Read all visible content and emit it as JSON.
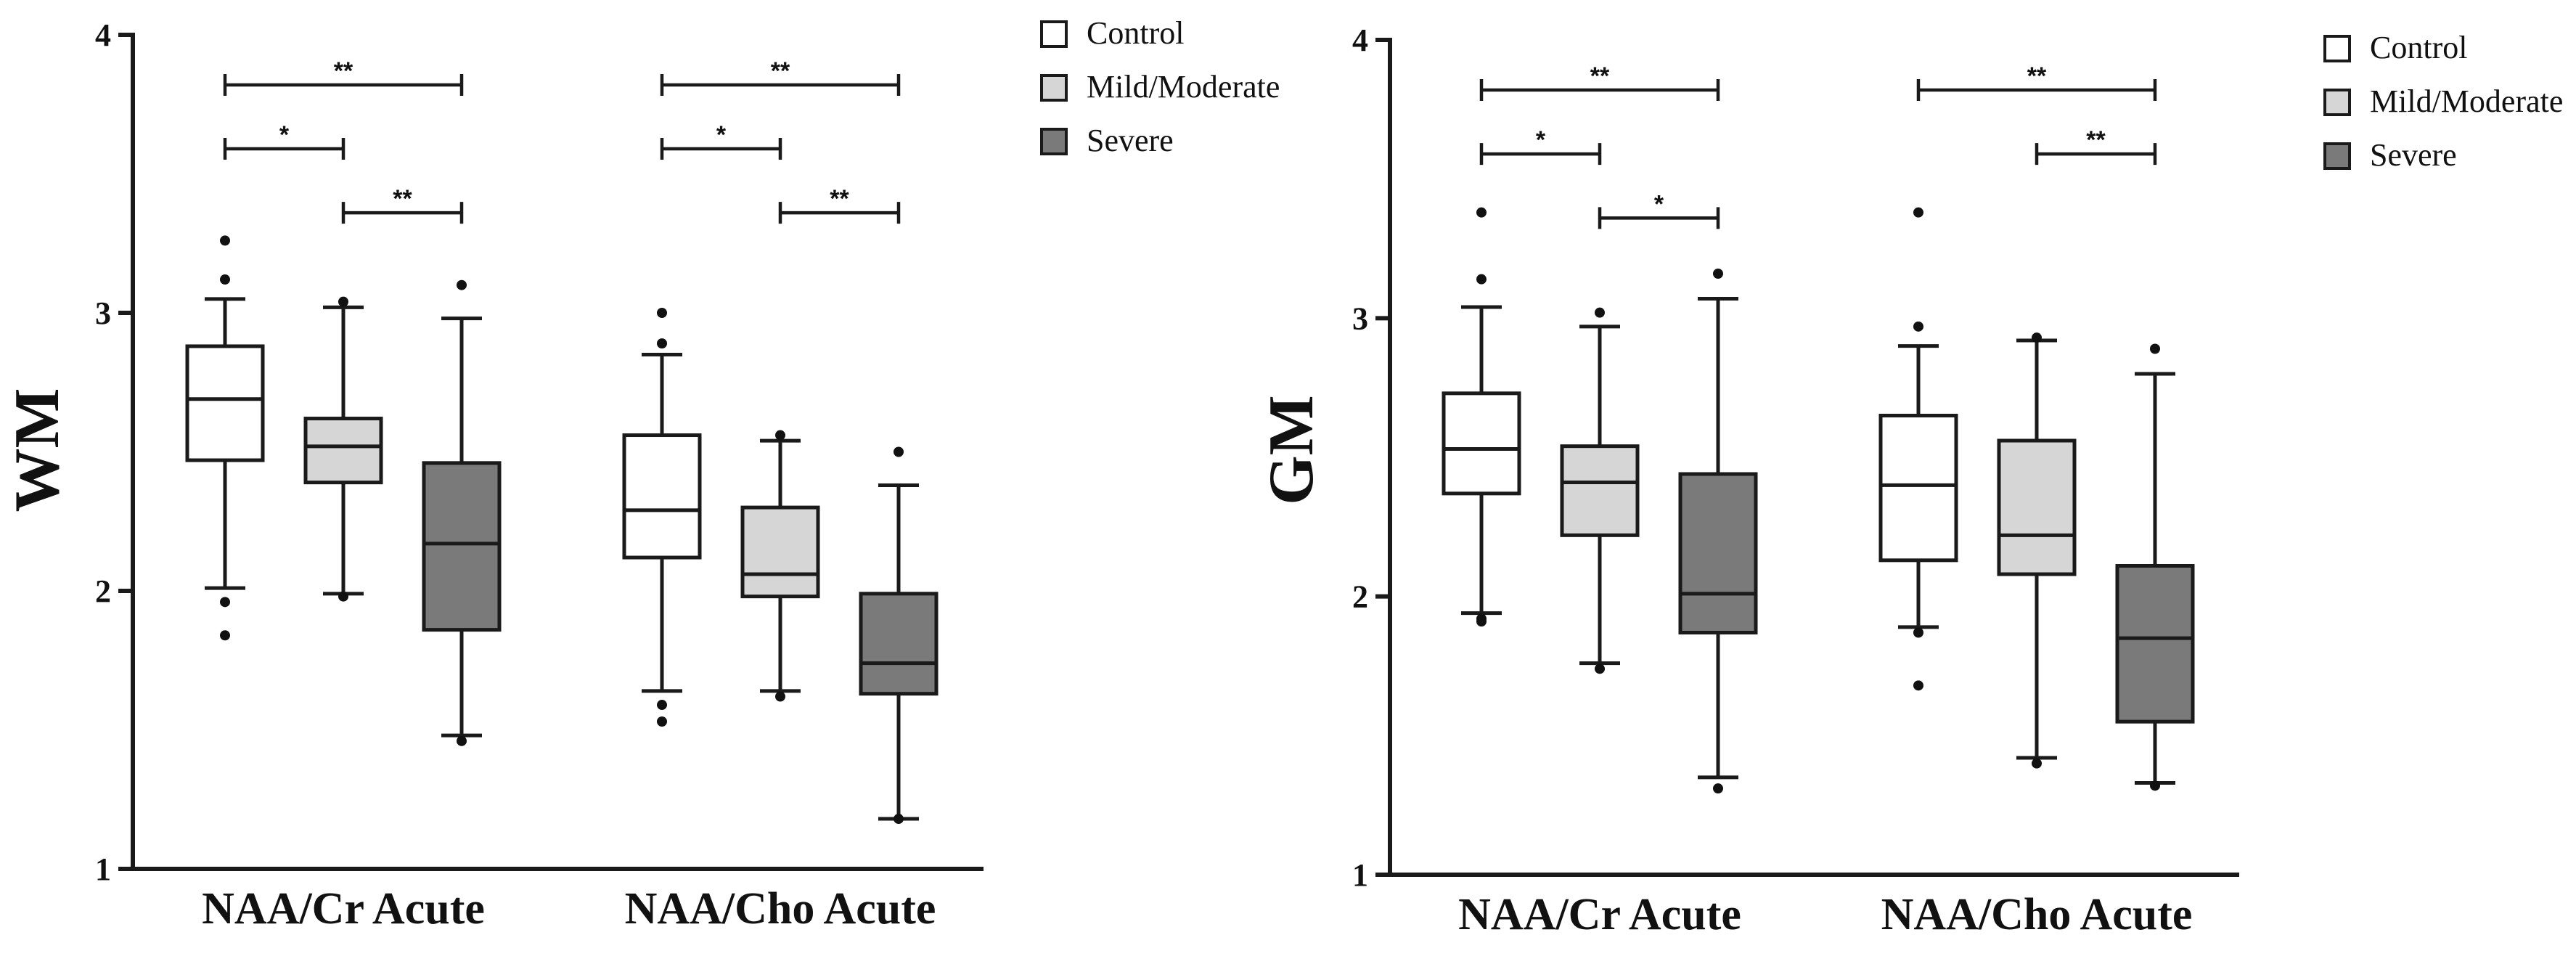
{
  "chart_data": [
    {
      "type": "box",
      "ylabel": "WM",
      "ylim": [
        1,
        4
      ],
      "yticks": [
        "1",
        "2",
        "3",
        "4"
      ],
      "categories": [
        "NAA/Cr Acute",
        "NAA/Cho Acute"
      ],
      "legend": [
        {
          "name": "Control",
          "color": "#ffffff"
        },
        {
          "name": "Mild/Moderate",
          "color": "#d6d6d6"
        },
        {
          "name": "Severe",
          "color": "#7a7a7a"
        }
      ],
      "series": [
        {
          "name": "Control",
          "boxes": [
            {
              "category": "NAA/Cr Acute",
              "whisker_low": 2.01,
              "q1": 2.47,
              "median": 2.69,
              "q3": 2.88,
              "whisker_high": 3.05,
              "outliers": [
                1.84,
                1.96,
                3.12,
                3.26
              ]
            },
            {
              "category": "NAA/Cho Acute",
              "whisker_low": 1.64,
              "q1": 2.12,
              "median": 2.29,
              "q3": 2.56,
              "whisker_high": 2.85,
              "outliers": [
                1.53,
                1.59,
                2.89,
                3.0
              ]
            }
          ]
        },
        {
          "name": "Mild/Moderate",
          "boxes": [
            {
              "category": "NAA/Cr Acute",
              "whisker_low": 1.99,
              "q1": 2.39,
              "median": 2.52,
              "q3": 2.62,
              "whisker_high": 3.02,
              "outliers": [
                1.98,
                3.04
              ]
            },
            {
              "category": "NAA/Cho Acute",
              "whisker_low": 1.64,
              "q1": 1.98,
              "median": 2.06,
              "q3": 2.3,
              "whisker_high": 2.54,
              "outliers": [
                1.62,
                2.56
              ]
            }
          ]
        },
        {
          "name": "Severe",
          "boxes": [
            {
              "category": "NAA/Cr Acute",
              "whisker_low": 1.48,
              "q1": 1.86,
              "median": 2.17,
              "q3": 2.46,
              "whisker_high": 2.98,
              "outliers": [
                1.46,
                3.1
              ]
            },
            {
              "category": "NAA/Cho Acute",
              "whisker_low": 1.18,
              "q1": 1.63,
              "median": 1.74,
              "q3": 1.99,
              "whisker_high": 2.38,
              "outliers": [
                1.18,
                2.5
              ]
            }
          ]
        }
      ],
      "significance": [
        {
          "category": "NAA/Cr Acute",
          "from": "Control",
          "to": "Severe",
          "y": 3.82,
          "label": "**"
        },
        {
          "category": "NAA/Cr Acute",
          "from": "Control",
          "to": "Mild/Moderate",
          "y": 3.59,
          "label": "*"
        },
        {
          "category": "NAA/Cr Acute",
          "from": "Mild/Moderate",
          "to": "Severe",
          "y": 3.36,
          "label": "**"
        },
        {
          "category": "NAA/Cho Acute",
          "from": "Control",
          "to": "Severe",
          "y": 3.82,
          "label": "**"
        },
        {
          "category": "NAA/Cho Acute",
          "from": "Control",
          "to": "Mild/Moderate",
          "y": 3.59,
          "label": "*"
        },
        {
          "category": "NAA/Cho Acute",
          "from": "Mild/Moderate",
          "to": "Severe",
          "y": 3.36,
          "label": "**"
        }
      ]
    },
    {
      "type": "box",
      "ylabel": "GM",
      "ylim": [
        1,
        4
      ],
      "yticks": [
        "1",
        "2",
        "3",
        "4"
      ],
      "categories": [
        "NAA/Cr Acute",
        "NAA/Cho Acute"
      ],
      "legend": [
        {
          "name": "Control",
          "color": "#ffffff"
        },
        {
          "name": "Mild/Moderate",
          "color": "#d6d6d6"
        },
        {
          "name": "Severe",
          "color": "#7a7a7a"
        }
      ],
      "series": [
        {
          "name": "Control",
          "boxes": [
            {
              "category": "NAA/Cr Acute",
              "whisker_low": 1.94,
              "q1": 2.37,
              "median": 2.53,
              "q3": 2.73,
              "whisker_high": 3.04,
              "outliers": [
                1.91,
                1.92,
                3.14,
                3.38
              ]
            },
            {
              "category": "NAA/Cho Acute",
              "whisker_low": 1.89,
              "q1": 2.13,
              "median": 2.4,
              "q3": 2.65,
              "whisker_high": 2.9,
              "outliers": [
                1.68,
                1.87,
                2.97,
                3.38
              ]
            }
          ]
        },
        {
          "name": "Mild/Moderate",
          "boxes": [
            {
              "category": "NAA/Cr Acute",
              "whisker_low": 1.76,
              "q1": 2.22,
              "median": 2.41,
              "q3": 2.54,
              "whisker_high": 2.97,
              "outliers": [
                1.74,
                3.02
              ]
            },
            {
              "category": "NAA/Cho Acute",
              "whisker_low": 1.42,
              "q1": 2.08,
              "median": 2.22,
              "q3": 2.56,
              "whisker_high": 2.92,
              "outliers": [
                1.4,
                2.93
              ]
            }
          ]
        },
        {
          "name": "Severe",
          "boxes": [
            {
              "category": "NAA/Cr Acute",
              "whisker_low": 1.35,
              "q1": 1.87,
              "median": 2.01,
              "q3": 2.44,
              "whisker_high": 3.07,
              "outliers": [
                1.31,
                3.16
              ]
            },
            {
              "category": "NAA/Cho Acute",
              "whisker_low": 1.33,
              "q1": 1.55,
              "median": 1.85,
              "q3": 2.11,
              "whisker_high": 2.8,
              "outliers": [
                1.32,
                2.89
              ]
            }
          ]
        }
      ],
      "significance": [
        {
          "category": "NAA/Cr Acute",
          "from": "Control",
          "to": "Severe",
          "y": 3.82,
          "label": "**"
        },
        {
          "category": "NAA/Cr Acute",
          "from": "Control",
          "to": "Mild/Moderate",
          "y": 3.59,
          "label": "*"
        },
        {
          "category": "NAA/Cr Acute",
          "from": "Mild/Moderate",
          "to": "Severe",
          "y": 3.36,
          "label": "*"
        },
        {
          "category": "NAA/Cho Acute",
          "from": "Control",
          "to": "Severe",
          "y": 3.82,
          "label": "**"
        },
        {
          "category": "NAA/Cho Acute",
          "from": "Mild/Moderate",
          "to": "Severe",
          "y": 3.59,
          "label": "**"
        }
      ]
    }
  ]
}
